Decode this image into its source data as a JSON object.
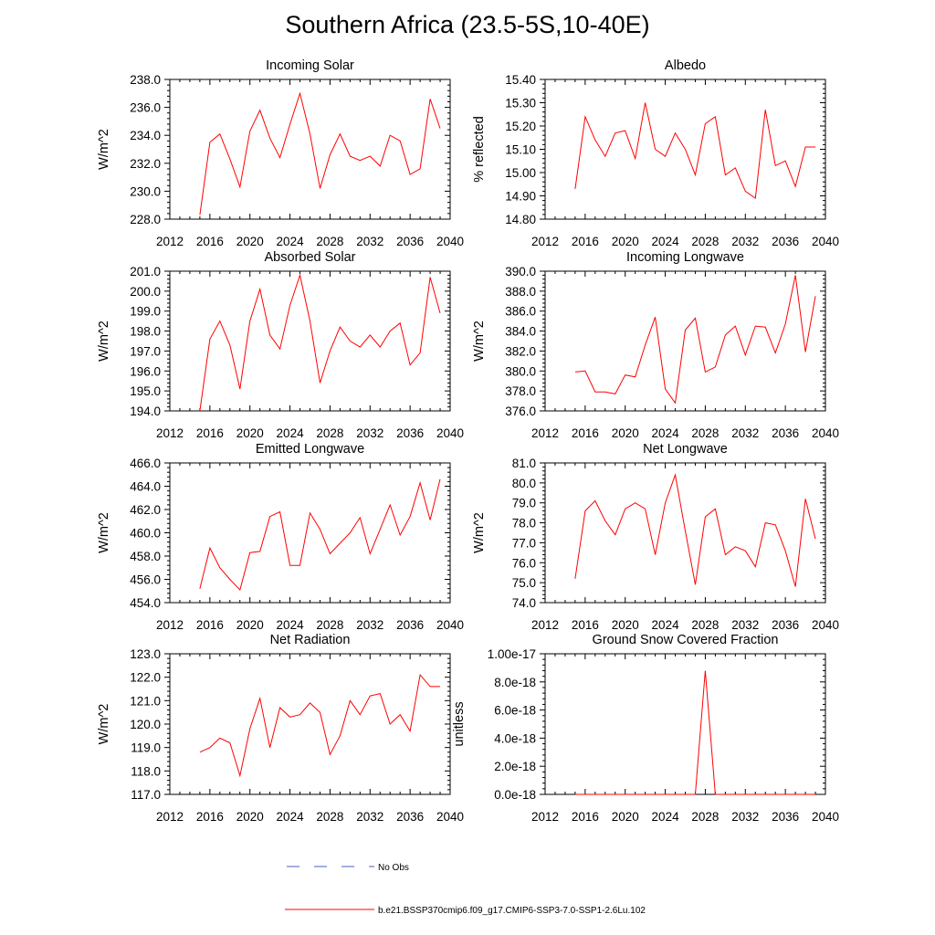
{
  "title": "Southern Africa (23.5-5S,10-40E)",
  "legend": {
    "obs_label": "No Obs",
    "obs_color": "#4a5dbf",
    "model_label": "b.e21.BSSP370cmip6.f09_g17.CMIP6-SSP3-7.0-SSP1-2.6Lu.102",
    "model_color": "#ff0000"
  },
  "chart_data": [
    {
      "type": "line",
      "title": "Incoming Solar",
      "ylabel": "W/m^2",
      "xlim": [
        2012,
        2040
      ],
      "xticks": [
        2012,
        2016,
        2020,
        2024,
        2028,
        2032,
        2036,
        2040
      ],
      "xtick_labels": [
        "2012",
        "2016",
        "2020",
        "2024",
        "2028",
        "2032",
        "2036",
        "2040"
      ],
      "ylim": [
        228.0,
        238.0
      ],
      "yticks": [
        228.0,
        230.0,
        232.0,
        234.0,
        236.0,
        238.0
      ],
      "ytick_labels": [
        "228.0",
        "230.0",
        "232.0",
        "234.0",
        "236.0",
        "238.0"
      ],
      "color": "#ff0000",
      "x": [
        2015,
        2016,
        2017,
        2018,
        2019,
        2020,
        2021,
        2022,
        2023,
        2024,
        2025,
        2026,
        2027,
        2028,
        2029,
        2030,
        2031,
        2032,
        2033,
        2034,
        2035,
        2036,
        2037,
        2038,
        2039
      ],
      "y": [
        228.3,
        233.5,
        234.1,
        232.3,
        230.3,
        234.3,
        235.8,
        233.8,
        232.4,
        234.8,
        237.0,
        234.1,
        230.2,
        232.6,
        234.1,
        232.5,
        232.2,
        232.5,
        231.8,
        234.0,
        233.6,
        231.2,
        231.6,
        236.6,
        234.5
      ]
    },
    {
      "type": "line",
      "title": "Albedo",
      "ylabel": "% reflected",
      "xlim": [
        2012,
        2040
      ],
      "xticks": [
        2012,
        2016,
        2020,
        2024,
        2028,
        2032,
        2036,
        2040
      ],
      "xtick_labels": [
        "2012",
        "2016",
        "2020",
        "2024",
        "2028",
        "2032",
        "2036",
        "2040"
      ],
      "ylim": [
        14.8,
        15.4
      ],
      "yticks": [
        14.8,
        14.9,
        15.0,
        15.1,
        15.2,
        15.3,
        15.4
      ],
      "ytick_labels": [
        "14.80",
        "14.90",
        "15.00",
        "15.10",
        "15.20",
        "15.30",
        "15.40"
      ],
      "color": "#ff0000",
      "x": [
        2015,
        2016,
        2017,
        2018,
        2019,
        2020,
        2021,
        2022,
        2023,
        2024,
        2025,
        2026,
        2027,
        2028,
        2029,
        2030,
        2031,
        2032,
        2033,
        2034,
        2035,
        2036,
        2037,
        2038,
        2039
      ],
      "y": [
        14.93,
        15.24,
        15.14,
        15.07,
        15.17,
        15.18,
        15.06,
        15.3,
        15.1,
        15.07,
        15.17,
        15.1,
        14.99,
        15.21,
        15.24,
        14.99,
        15.02,
        14.92,
        14.89,
        15.27,
        15.03,
        15.05,
        14.94,
        15.11,
        15.11
      ]
    },
    {
      "type": "line",
      "title": "Absorbed Solar",
      "ylabel": "W/m^2",
      "xlim": [
        2012,
        2040
      ],
      "xticks": [
        2012,
        2016,
        2020,
        2024,
        2028,
        2032,
        2036,
        2040
      ],
      "xtick_labels": [
        "2012",
        "2016",
        "2020",
        "2024",
        "2028",
        "2032",
        "2036",
        "2040"
      ],
      "ylim": [
        194.0,
        201.0
      ],
      "yticks": [
        194.0,
        195.0,
        196.0,
        197.0,
        198.0,
        199.0,
        200.0,
        201.0
      ],
      "ytick_labels": [
        "194.0",
        "195.0",
        "196.0",
        "197.0",
        "198.0",
        "199.0",
        "200.0",
        "201.0"
      ],
      "color": "#ff0000",
      "x": [
        2015,
        2016,
        2017,
        2018,
        2019,
        2020,
        2021,
        2022,
        2023,
        2024,
        2025,
        2026,
        2027,
        2028,
        2029,
        2030,
        2031,
        2032,
        2033,
        2034,
        2035,
        2036,
        2037,
        2038,
        2039
      ],
      "y": [
        194.0,
        197.6,
        198.5,
        197.3,
        195.1,
        198.5,
        200.1,
        197.8,
        197.1,
        199.3,
        200.8,
        198.5,
        195.4,
        197.0,
        198.2,
        197.5,
        197.2,
        197.8,
        197.2,
        198.0,
        198.4,
        196.3,
        196.9,
        200.7,
        198.9
      ]
    },
    {
      "type": "line",
      "title": "Incoming Longwave",
      "ylabel": "W/m^2",
      "xlim": [
        2012,
        2040
      ],
      "xticks": [
        2012,
        2016,
        2020,
        2024,
        2028,
        2032,
        2036,
        2040
      ],
      "xtick_labels": [
        "2012",
        "2016",
        "2020",
        "2024",
        "2028",
        "2032",
        "2036",
        "2040"
      ],
      "ylim": [
        376.0,
        390.0
      ],
      "yticks": [
        376.0,
        378.0,
        380.0,
        382.0,
        384.0,
        386.0,
        388.0,
        390.0
      ],
      "ytick_labels": [
        "376.0",
        "378.0",
        "380.0",
        "382.0",
        "384.0",
        "386.0",
        "388.0",
        "390.0"
      ],
      "color": "#ff0000",
      "x": [
        2015,
        2016,
        2017,
        2018,
        2019,
        2020,
        2021,
        2022,
        2023,
        2024,
        2025,
        2026,
        2027,
        2028,
        2029,
        2030,
        2031,
        2032,
        2033,
        2034,
        2035,
        2036,
        2037,
        2038,
        2039
      ],
      "y": [
        379.9,
        380.0,
        377.9,
        377.9,
        377.7,
        379.6,
        379.4,
        382.6,
        385.4,
        378.2,
        376.8,
        384.1,
        385.3,
        379.9,
        380.4,
        383.6,
        384.5,
        381.6,
        384.5,
        384.4,
        381.8,
        384.7,
        389.6,
        381.9,
        387.5
      ]
    },
    {
      "type": "line",
      "title": "Emitted Longwave",
      "ylabel": "W/m^2",
      "xlim": [
        2012,
        2040
      ],
      "xticks": [
        2012,
        2016,
        2020,
        2024,
        2028,
        2032,
        2036,
        2040
      ],
      "xtick_labels": [
        "2012",
        "2016",
        "2020",
        "2024",
        "2028",
        "2032",
        "2036",
        "2040"
      ],
      "ylim": [
        454.0,
        466.0
      ],
      "yticks": [
        454.0,
        456.0,
        458.0,
        460.0,
        462.0,
        464.0,
        466.0
      ],
      "ytick_labels": [
        "454.0",
        "456.0",
        "458.0",
        "460.0",
        "462.0",
        "464.0",
        "466.0"
      ],
      "color": "#ff0000",
      "x": [
        2015,
        2016,
        2017,
        2018,
        2019,
        2020,
        2021,
        2022,
        2023,
        2024,
        2025,
        2026,
        2027,
        2028,
        2029,
        2030,
        2031,
        2032,
        2033,
        2034,
        2035,
        2036,
        2037,
        2038,
        2039
      ],
      "y": [
        455.2,
        458.7,
        457.0,
        456.0,
        455.1,
        458.3,
        458.4,
        461.4,
        461.8,
        457.2,
        457.2,
        461.7,
        460.3,
        458.2,
        459.1,
        460.0,
        461.3,
        458.2,
        460.3,
        462.4,
        459.8,
        461.4,
        464.3,
        461.1,
        464.6
      ]
    },
    {
      "type": "line",
      "title": "Net Longwave",
      "ylabel": "W/m^2",
      "xlim": [
        2012,
        2040
      ],
      "xticks": [
        2012,
        2016,
        2020,
        2024,
        2028,
        2032,
        2036,
        2040
      ],
      "xtick_labels": [
        "2012",
        "2016",
        "2020",
        "2024",
        "2028",
        "2032",
        "2036",
        "2040"
      ],
      "ylim": [
        74.0,
        81.0
      ],
      "yticks": [
        74.0,
        75.0,
        76.0,
        77.0,
        78.0,
        79.0,
        80.0,
        81.0
      ],
      "ytick_labels": [
        "74.0",
        "75.0",
        "76.0",
        "77.0",
        "78.0",
        "79.0",
        "80.0",
        "81.0"
      ],
      "color": "#ff0000",
      "x": [
        2015,
        2016,
        2017,
        2018,
        2019,
        2020,
        2021,
        2022,
        2023,
        2024,
        2025,
        2026,
        2027,
        2028,
        2029,
        2030,
        2031,
        2032,
        2033,
        2034,
        2035,
        2036,
        2037,
        2038,
        2039
      ],
      "y": [
        75.2,
        78.6,
        79.1,
        78.1,
        77.4,
        78.7,
        79.0,
        78.7,
        76.4,
        79.0,
        80.4,
        77.6,
        74.9,
        78.3,
        78.7,
        76.4,
        76.8,
        76.6,
        75.8,
        78.0,
        77.9,
        76.6,
        74.8,
        79.2,
        77.2
      ]
    },
    {
      "type": "line",
      "title": "Net Radiation",
      "ylabel": "W/m^2",
      "xlim": [
        2012,
        2040
      ],
      "xticks": [
        2012,
        2016,
        2020,
        2024,
        2028,
        2032,
        2036,
        2040
      ],
      "xtick_labels": [
        "2012",
        "2016",
        "2020",
        "2024",
        "2028",
        "2032",
        "2036",
        "2040"
      ],
      "ylim": [
        117.0,
        123.0
      ],
      "yticks": [
        117.0,
        118.0,
        119.0,
        120.0,
        121.0,
        122.0,
        123.0
      ],
      "ytick_labels": [
        "117.0",
        "118.0",
        "119.0",
        "120.0",
        "121.0",
        "122.0",
        "123.0"
      ],
      "color": "#ff0000",
      "x": [
        2015,
        2016,
        2017,
        2018,
        2019,
        2020,
        2021,
        2022,
        2023,
        2024,
        2025,
        2026,
        2027,
        2028,
        2029,
        2030,
        2031,
        2032,
        2033,
        2034,
        2035,
        2036,
        2037,
        2038,
        2039
      ],
      "y": [
        118.8,
        119.0,
        119.4,
        119.2,
        117.8,
        119.8,
        121.1,
        119.0,
        120.7,
        120.3,
        120.4,
        120.9,
        120.5,
        118.7,
        119.5,
        121.0,
        120.4,
        121.2,
        121.3,
        120.0,
        120.4,
        119.7,
        122.1,
        121.6,
        121.6
      ]
    },
    {
      "type": "line",
      "title": "Ground Snow Covered Fraction",
      "ylabel": "unitless",
      "xlim": [
        2012,
        2040
      ],
      "xticks": [
        2012,
        2016,
        2020,
        2024,
        2028,
        2032,
        2036,
        2040
      ],
      "xtick_labels": [
        "2012",
        "2016",
        "2020",
        "2024",
        "2028",
        "2032",
        "2036",
        "2040"
      ],
      "ylim": [
        0.0,
        1e-17
      ],
      "yticks": [
        0.0,
        2e-18,
        4e-18,
        6e-18,
        8e-18,
        1e-17
      ],
      "ytick_labels": [
        "0.0e-18",
        "2.0e-18",
        "4.0e-18",
        "6.0e-18",
        "8.0e-18",
        "1.00e-17"
      ],
      "color": "#ff0000",
      "x": [
        2015,
        2016,
        2017,
        2018,
        2019,
        2020,
        2021,
        2022,
        2023,
        2024,
        2025,
        2026,
        2027,
        2028,
        2029,
        2030,
        2031,
        2032,
        2033,
        2034,
        2035,
        2036,
        2037,
        2038,
        2039
      ],
      "y": [
        0,
        0,
        0,
        0,
        0,
        0,
        0,
        0,
        0,
        0,
        0,
        0,
        0,
        8.8e-18,
        0,
        0,
        0,
        0,
        0,
        0,
        0,
        0,
        0,
        0,
        0
      ]
    }
  ]
}
